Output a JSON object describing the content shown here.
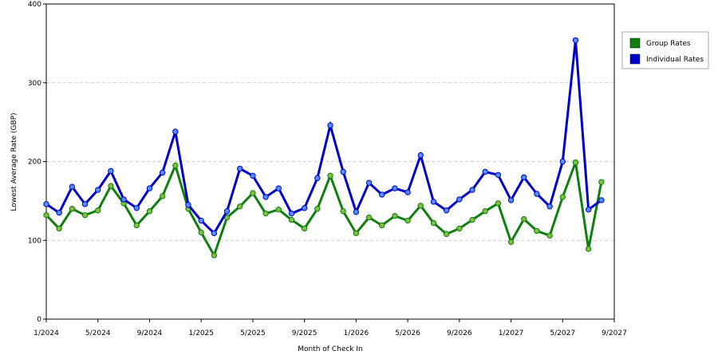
{
  "chart_data": {
    "type": "line",
    "y_label": "Lowest Average Rate (GBP)",
    "x_label": "Month of Check In",
    "categories": [
      "1/2024",
      null,
      null,
      null,
      "5/2024",
      null,
      null,
      null,
      "9/2024",
      null,
      null,
      null,
      "1/2025",
      null,
      null,
      null,
      "5/2025",
      null,
      null,
      null,
      "9/2025",
      null,
      null,
      null,
      "1/2026",
      null,
      null,
      null,
      "5/2026",
      null,
      null,
      null,
      "9/2026",
      null,
      null,
      null,
      "1/2027",
      null,
      null,
      null,
      "5/2027",
      null,
      null,
      null,
      "9/2027"
    ],
    "series": [
      {
        "name": "Group Rates",
        "color": "#0f7f0f",
        "values": [
          132,
          115,
          140,
          132,
          138,
          169,
          147,
          119,
          137,
          156,
          195,
          140,
          110,
          81,
          129,
          143,
          160,
          134,
          139,
          126,
          115,
          140,
          182,
          137,
          109,
          129,
          119,
          131,
          125,
          144,
          122,
          108,
          115,
          126,
          137,
          147,
          98,
          127,
          112,
          106,
          155,
          199,
          89,
          174,
          null
        ]
      },
      {
        "name": "Individual Rates",
        "color": "#0000cc",
        "values": [
          146,
          135,
          168,
          146,
          164,
          188,
          152,
          141,
          166,
          186,
          238,
          145,
          125,
          109,
          137,
          191,
          182,
          155,
          166,
          134,
          141,
          179,
          246,
          187,
          136,
          173,
          158,
          166,
          161,
          208,
          149,
          138,
          152,
          164,
          187,
          183,
          151,
          180,
          159,
          143,
          200,
          354,
          139,
          151,
          null
        ]
      }
    ],
    "ylim": [
      0,
      400
    ],
    "yticks": [
      0,
      100,
      200,
      300,
      400
    ],
    "grid": true,
    "legend": "right"
  }
}
